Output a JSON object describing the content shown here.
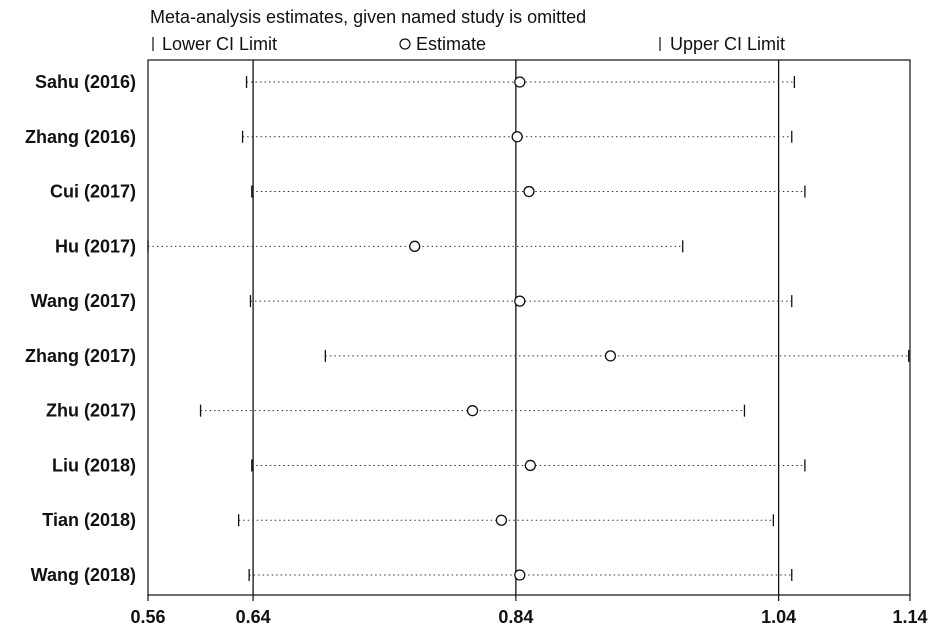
{
  "chart_data": {
    "type": "scatter",
    "title": "Meta-analysis estimates, given named study is omitted",
    "legend": {
      "lower": "Lower CI Limit",
      "estimate": "Estimate",
      "upper": "Upper CI Limit",
      "placement": "top"
    },
    "studies": [
      {
        "name": "Sahu (2016)",
        "lower": 0.635,
        "estimate": 0.843,
        "upper": 1.052
      },
      {
        "name": "Zhang (2016)",
        "lower": 0.632,
        "estimate": 0.841,
        "upper": 1.05
      },
      {
        "name": "Cui (2017)",
        "lower": 0.639,
        "estimate": 0.85,
        "upper": 1.06
      },
      {
        "name": "Hu (2017)",
        "lower": 0.56,
        "estimate": 0.763,
        "upper": 0.967
      },
      {
        "name": "Wang (2017)",
        "lower": 0.638,
        "estimate": 0.843,
        "upper": 1.05
      },
      {
        "name": "Zhang (2017)",
        "lower": 0.695,
        "estimate": 0.912,
        "upper": 1.139
      },
      {
        "name": "Zhu (2017)",
        "lower": 0.6,
        "estimate": 0.807,
        "upper": 1.014
      },
      {
        "name": "Liu (2018)",
        "lower": 0.639,
        "estimate": 0.851,
        "upper": 1.06
      },
      {
        "name": "Tian (2018)",
        "lower": 0.629,
        "estimate": 0.829,
        "upper": 1.036
      },
      {
        "name": "Wang (2018)",
        "lower": 0.637,
        "estimate": 0.843,
        "upper": 1.05
      }
    ],
    "xticks": [
      "0.56",
      "0.64",
      "0.84",
      "1.04",
      "1.14"
    ],
    "reference_lines": [
      0.64,
      0.84,
      1.04
    ],
    "xlim": [
      0.56,
      1.14
    ]
  }
}
